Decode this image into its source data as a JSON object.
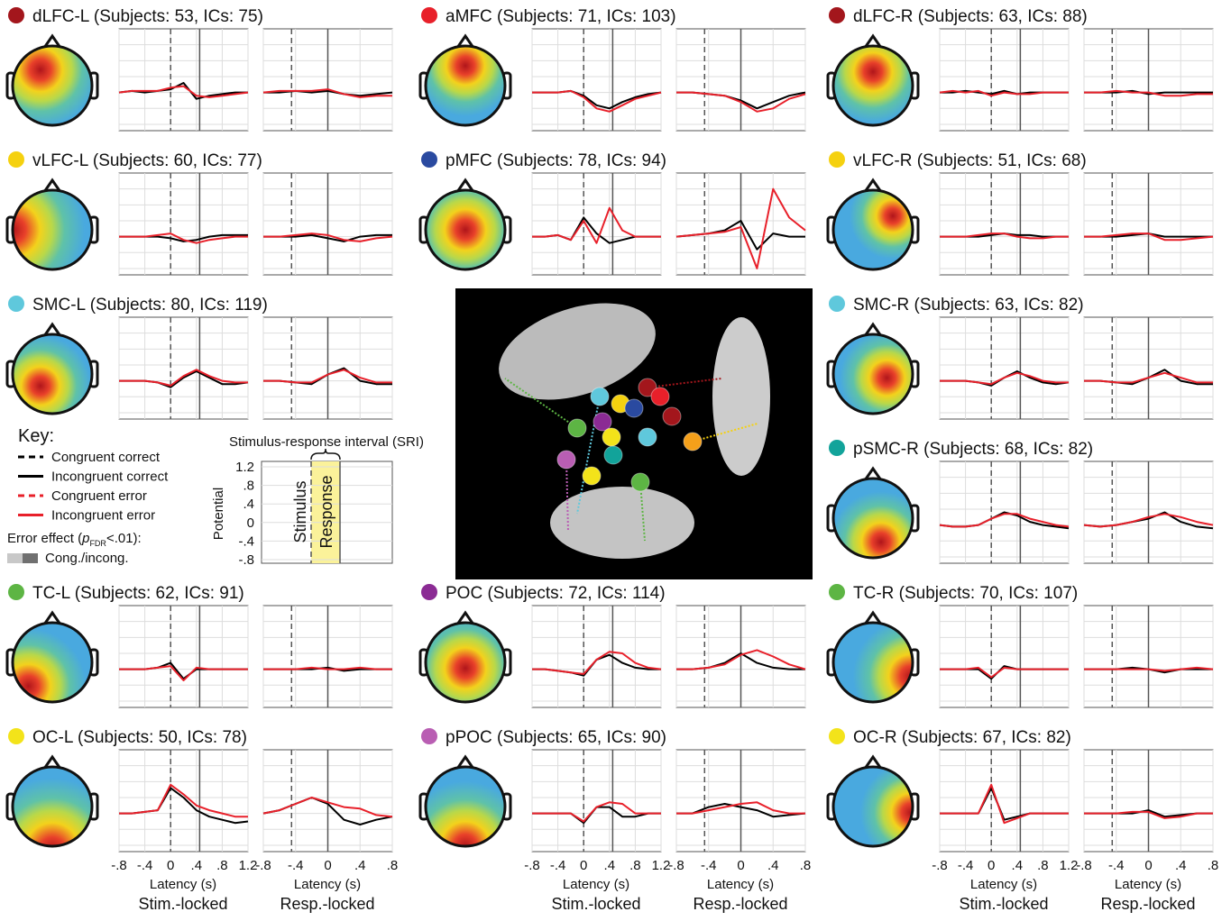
{
  "axes": {
    "stim_x": [
      -0.8,
      -0.6,
      -0.4,
      -0.2,
      0,
      0.2,
      0.4,
      0.6,
      0.8,
      1.0,
      1.2
    ],
    "resp_x": [
      -0.8,
      -0.6,
      -0.4,
      -0.2,
      0,
      0.2,
      0.4,
      0.6,
      0.8
    ],
    "stim_xlim": [
      -0.8,
      1.2
    ],
    "resp_xlim": [
      -0.8,
      0.8
    ],
    "ylim": [
      -1.2,
      2
    ],
    "yticks": [
      -1,
      -0.5,
      0,
      0.5,
      1,
      1.5
    ],
    "stim_rt": 0.45,
    "resp_onset": -0.45,
    "stim_xticks": [
      {
        "value": -0.8,
        "label": "-.8"
      },
      {
        "value": -0.4,
        "label": "-.4"
      },
      0,
      {
        "value": 0.4,
        "label": ".4"
      },
      {
        "value": 0.8,
        "label": ".8"
      },
      1.2
    ],
    "resp_xticks": [
      {
        "value": -0.8,
        "label": "-.8"
      },
      {
        "value": -0.4,
        "label": "-.4"
      },
      0,
      {
        "value": 0.4,
        "label": ".4"
      },
      {
        "value": 0.8,
        "label": ".8"
      }
    ],
    "xlabel": "Latency (s)",
    "stim_title": "Stim.-locked",
    "resp_title": "Resp.-locked"
  },
  "panels": [
    {
      "title": "dLFC-L (Subjects: 53, ICs: 75)",
      "color": "#a3161c",
      "stim_black": [
        0,
        0.05,
        0,
        0.05,
        0.1,
        0.3,
        -0.2,
        -0.1,
        -0.05,
        0,
        0
      ],
      "stim_red": [
        0,
        0.05,
        0.05,
        0.05,
        0.15,
        0.2,
        -0.1,
        -0.15,
        -0.1,
        -0.05,
        0
      ],
      "resp_black": [
        0,
        0,
        0.05,
        0,
        0.05,
        -0.05,
        -0.1,
        -0.05,
        0
      ],
      "resp_red": [
        0,
        0.05,
        0.05,
        0.05,
        0.1,
        -0.05,
        -0.15,
        -0.1,
        -0.1
      ]
    },
    {
      "title": "aMFC (Subjects: 71, ICs: 103)",
      "color": "#e8202a",
      "stim_black": [
        0,
        0,
        0,
        0.05,
        -0.1,
        -0.4,
        -0.5,
        -0.3,
        -0.15,
        -0.05,
        0
      ],
      "stim_red": [
        0,
        0,
        0,
        0.05,
        -0.15,
        -0.5,
        -0.6,
        -0.4,
        -0.2,
        -0.1,
        0
      ],
      "resp_black": [
        0,
        0,
        -0.05,
        -0.1,
        -0.25,
        -0.5,
        -0.3,
        -0.1,
        0
      ],
      "resp_red": [
        0,
        0,
        -0.05,
        -0.1,
        -0.3,
        -0.6,
        -0.5,
        -0.2,
        -0.05
      ]
    },
    {
      "title": "dLFC-R (Subjects: 63, ICs: 88)",
      "color": "#a3161c",
      "stim_black": [
        0,
        0,
        0.05,
        0,
        -0.05,
        0.05,
        -0.05,
        0,
        0,
        0,
        0
      ],
      "stim_red": [
        0,
        0.05,
        0,
        0.05,
        -0.1,
        0,
        -0.05,
        -0.05,
        0,
        0,
        0
      ],
      "resp_black": [
        0,
        0,
        0,
        0.05,
        -0.05,
        0,
        0,
        0,
        0
      ],
      "resp_red": [
        0,
        0,
        0.05,
        0,
        0,
        -0.1,
        -0.1,
        -0.05,
        -0.05
      ]
    },
    {
      "title": "vLFC-L (Subjects: 60, ICs: 77)",
      "color": "#f5d10f",
      "stim_black": [
        0,
        0,
        0,
        0,
        -0.05,
        -0.15,
        -0.1,
        0,
        0.05,
        0.05,
        0.05
      ],
      "stim_red": [
        0,
        0,
        0,
        0.05,
        0.1,
        -0.1,
        -0.2,
        -0.1,
        -0.05,
        0,
        0
      ],
      "resp_black": [
        0,
        0,
        0,
        0.05,
        -0.05,
        -0.15,
        0,
        0.05,
        0.05
      ],
      "resp_red": [
        0,
        0,
        0.05,
        0.1,
        0.05,
        -0.1,
        -0.15,
        -0.05,
        0
      ]
    },
    {
      "title": "pMFC (Subjects: 78, ICs: 94)",
      "color": "#2a4aa0",
      "stim_black": [
        0,
        0,
        0.05,
        -0.1,
        0.6,
        0.1,
        -0.2,
        -0.1,
        0,
        0,
        0
      ],
      "stim_red": [
        0,
        0,
        0.05,
        -0.1,
        0.5,
        -0.2,
        0.9,
        0.2,
        0,
        0,
        0
      ],
      "resp_black": [
        0,
        0.05,
        0.1,
        0.2,
        0.5,
        -0.4,
        0.1,
        0,
        0
      ],
      "resp_red": [
        0,
        0.05,
        0.1,
        0.15,
        0.3,
        -1.0,
        1.5,
        0.6,
        0.2
      ]
    },
    {
      "title": "vLFC-R (Subjects: 51, ICs: 68)",
      "color": "#f5d10f",
      "stim_black": [
        0,
        0,
        0,
        0,
        0.05,
        0.1,
        0.05,
        0.05,
        0,
        0,
        0
      ],
      "stim_red": [
        0,
        0,
        0,
        0.05,
        0.1,
        0.1,
        0,
        -0.05,
        -0.05,
        0,
        0
      ],
      "resp_black": [
        0,
        0,
        0,
        0.05,
        0.1,
        0,
        0,
        0,
        0
      ],
      "resp_red": [
        0,
        0,
        0.05,
        0.1,
        0.1,
        -0.1,
        -0.1,
        -0.05,
        0
      ]
    },
    {
      "title": "SMC-L (Subjects: 80, ICs: 119)",
      "color": "#5fc8dc",
      "stim_black": [
        0,
        0,
        0,
        -0.05,
        -0.2,
        0.1,
        0.3,
        0.1,
        -0.1,
        -0.1,
        -0.05
      ],
      "stim_red": [
        0,
        0,
        0,
        -0.05,
        -0.15,
        0.15,
        0.35,
        0.15,
        0,
        -0.05,
        -0.05
      ],
      "resp_black": [
        0,
        0,
        -0.05,
        -0.1,
        0.2,
        0.4,
        0,
        -0.1,
        -0.1
      ],
      "resp_red": [
        0,
        0,
        -0.05,
        -0.05,
        0.2,
        0.35,
        0.1,
        -0.05,
        -0.05
      ]
    },
    {
      "title": "SMC-R (Subjects: 63, ICs: 82)",
      "color": "#5fc8dc",
      "stim_black": [
        0,
        0,
        0,
        -0.05,
        -0.15,
        0.1,
        0.3,
        0.1,
        -0.05,
        -0.1,
        -0.05
      ],
      "stim_red": [
        0,
        0,
        0,
        -0.05,
        -0.1,
        0.1,
        0.25,
        0.15,
        0,
        -0.05,
        -0.05
      ],
      "resp_black": [
        0,
        0,
        -0.05,
        -0.1,
        0.1,
        0.35,
        0,
        -0.1,
        -0.1
      ],
      "resp_red": [
        0,
        0,
        -0.05,
        -0.05,
        0.1,
        0.25,
        0.1,
        -0.05,
        -0.05
      ]
    },
    {
      "title": "pSMC-R (Subjects: 68, ICs: 82)",
      "color": "#12a39a",
      "stim_black": [
        0,
        -0.05,
        -0.05,
        0,
        0.2,
        0.4,
        0.3,
        0.1,
        0,
        -0.05,
        -0.1
      ],
      "stim_red": [
        0,
        -0.05,
        -0.05,
        0,
        0.2,
        0.35,
        0.35,
        0.2,
        0.1,
        0,
        -0.05
      ],
      "resp_black": [
        0,
        -0.05,
        0,
        0.1,
        0.2,
        0.4,
        0.1,
        -0.05,
        -0.1
      ],
      "resp_red": [
        0,
        -0.05,
        0,
        0.1,
        0.25,
        0.35,
        0.25,
        0.1,
        0
      ]
    },
    {
      "title": "TC-L (Subjects: 62, ICs: 91)",
      "color": "#5db544",
      "stim_black": [
        0,
        0,
        0,
        0.05,
        0.2,
        -0.3,
        0,
        0,
        0,
        0,
        0
      ],
      "stim_red": [
        0,
        0,
        0,
        0.05,
        0.1,
        -0.35,
        0.05,
        0,
        0,
        0,
        0
      ],
      "resp_black": [
        0,
        0,
        0,
        0,
        0.05,
        -0.05,
        0,
        0,
        0
      ],
      "resp_red": [
        0,
        0,
        0,
        0.05,
        0,
        0,
        0.05,
        0,
        0
      ]
    },
    {
      "title": "POC (Subjects: 72, ICs: 114)",
      "color": "#8b2b94",
      "stim_black": [
        0,
        0,
        -0.05,
        -0.1,
        -0.2,
        0.3,
        0.45,
        0.2,
        0.05,
        0,
        0
      ],
      "stim_red": [
        0,
        0,
        -0.05,
        -0.1,
        -0.15,
        0.3,
        0.55,
        0.5,
        0.2,
        0.05,
        0
      ],
      "resp_black": [
        0,
        0,
        0.05,
        0.2,
        0.5,
        0.2,
        0.05,
        0,
        0
      ],
      "resp_red": [
        0,
        0,
        0.05,
        0.15,
        0.45,
        0.6,
        0.4,
        0.15,
        0
      ]
    },
    {
      "title": "TC-R (Subjects: 70, ICs: 107)",
      "color": "#5db544",
      "stim_black": [
        0,
        0,
        0,
        0,
        -0.3,
        0.1,
        0,
        0,
        0,
        0,
        0
      ],
      "stim_red": [
        0,
        0,
        0,
        0.05,
        -0.25,
        0.05,
        0,
        0,
        0,
        0,
        0
      ],
      "resp_black": [
        0,
        0,
        0,
        0.05,
        0,
        -0.1,
        0,
        0,
        0
      ],
      "resp_red": [
        0,
        0,
        0,
        0,
        0,
        -0.05,
        0,
        0.05,
        0
      ]
    },
    {
      "title": "OC-L (Subjects: 50, ICs: 78)",
      "color": "#f3e31a",
      "stim_black": [
        0,
        0,
        0.05,
        0.1,
        0.8,
        0.5,
        0.1,
        -0.1,
        -0.2,
        -0.3,
        -0.25
      ],
      "stim_red": [
        0,
        0,
        0.05,
        0.1,
        0.9,
        0.6,
        0.25,
        0.1,
        0,
        -0.1,
        -0.1
      ],
      "resp_black": [
        0,
        0.1,
        0.3,
        0.5,
        0.3,
        -0.2,
        -0.35,
        -0.2,
        -0.1
      ],
      "resp_red": [
        0,
        0.1,
        0.3,
        0.5,
        0.35,
        0.2,
        0.15,
        -0.05,
        -0.1
      ]
    },
    {
      "title": "pPOC (Subjects: 65, ICs: 90)",
      "color": "#b95eb3",
      "stim_black": [
        0,
        0,
        0,
        0,
        -0.3,
        0.2,
        0.2,
        -0.1,
        -0.1,
        0,
        0
      ],
      "stim_red": [
        0,
        0,
        0,
        0,
        -0.25,
        0.2,
        0.35,
        0.3,
        0,
        0,
        0
      ],
      "resp_black": [
        0,
        0,
        0.2,
        0.3,
        0.2,
        0.1,
        -0.1,
        -0.05,
        0
      ],
      "resp_red": [
        0,
        0,
        0.1,
        0.2,
        0.3,
        0.35,
        0.1,
        0,
        0
      ]
    },
    {
      "title": "OC-R (Subjects: 67, ICs: 82)",
      "color": "#f3e31a",
      "stim_black": [
        0,
        0,
        0,
        0,
        0.8,
        -0.2,
        -0.1,
        0,
        0,
        0,
        0
      ],
      "stim_red": [
        0,
        0,
        0,
        0,
        0.9,
        -0.3,
        -0.15,
        0,
        0,
        0,
        0
      ],
      "resp_black": [
        0,
        0,
        0,
        0,
        0.1,
        -0.1,
        -0.05,
        0,
        0
      ],
      "resp_red": [
        0,
        0,
        0,
        0.05,
        0.05,
        -0.15,
        -0.1,
        0,
        0
      ]
    }
  ],
  "key": {
    "title": "Key:",
    "entries": [
      {
        "name": "Congruent correct",
        "color": "#000000",
        "dash": true
      },
      {
        "name": "Incongruent correct",
        "color": "#000000",
        "dash": false
      },
      {
        "name": "Congruent error",
        "color": "#e8202a",
        "dash": true
      },
      {
        "name": "Incongruent error",
        "color": "#e8202a",
        "dash": false
      }
    ],
    "error_prefix": "Error effect (",
    "error_p": "p",
    "error_sub": "FDR",
    "error_suffix": "<.01):",
    "cong": "Cong./incong."
  },
  "sri": {
    "title": "Stimulus-response interval (SRI)",
    "ylabel": "Potential",
    "stimulus": "Stimulus",
    "response": "Response",
    "ylim": [
      -0.8,
      1.2
    ],
    "yticks": [
      {
        "value": 1.2,
        "label": "1.2"
      },
      {
        "value": 0.8,
        "label": ".8"
      },
      {
        "value": 0.4,
        "label": ".4"
      },
      0,
      {
        "value": -0.4,
        "label": "-.4"
      },
      {
        "value": -0.8,
        "label": "-.8"
      }
    ]
  }
}
